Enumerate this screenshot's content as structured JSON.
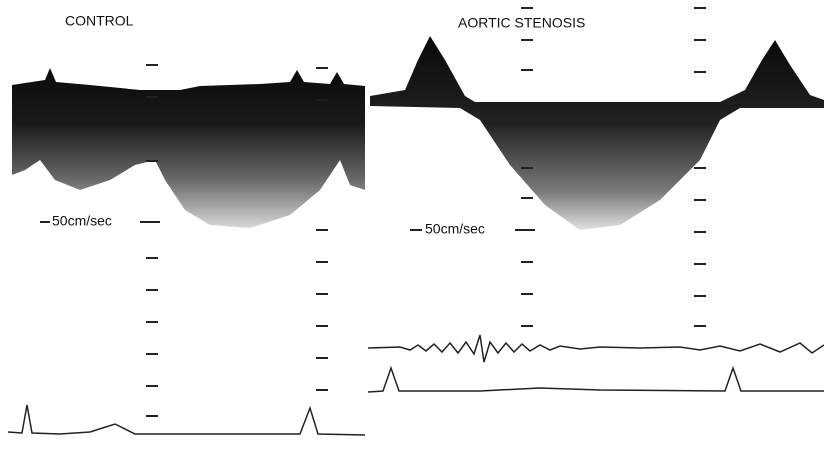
{
  "panels": [
    {
      "title": "CONTROL",
      "scale_label": "50cm/sec"
    },
    {
      "title": "AORTIC STENOSIS",
      "scale_label": "50cm/sec"
    }
  ]
}
